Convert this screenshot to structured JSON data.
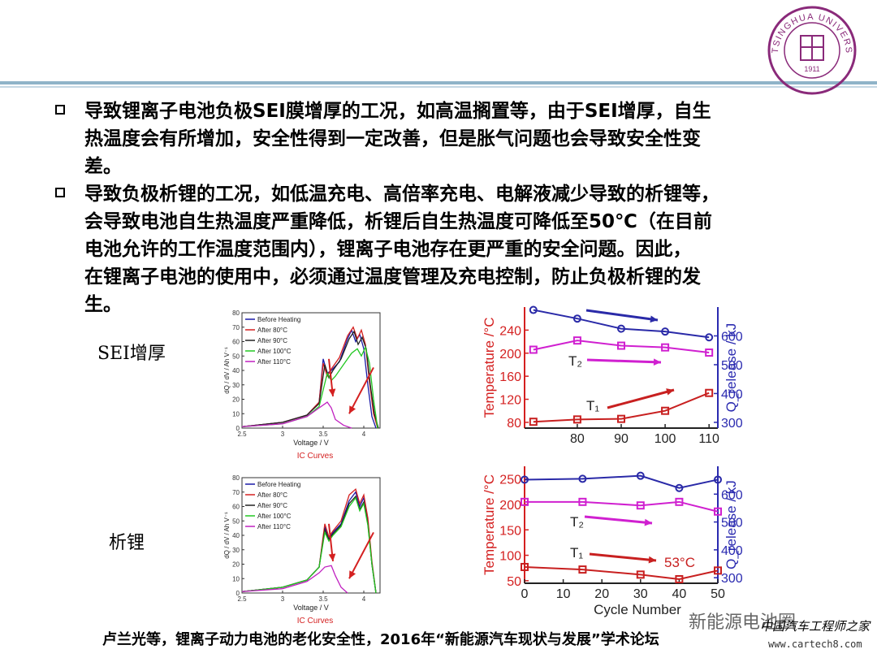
{
  "slide": {
    "bullets": [
      "导致锂离子电池负极SEI膜增厚的工况，如高温搁置等，由于SEI增厚，自生热温度会有所增加，安全性得到一定改善，但是胀气问题也会导致安全性变差。",
      "导致负极析锂的工况，如低温充电、高倍率充电、电解液减少导致的析锂等，会导致电池自生热温度严重降低，析锂后自生热温度可降低至50℃（在目前电池允许的工作温度范围内），锂离子电池存在更严重的安全问题。因此，在锂离子电池的使用中，必须通过温度管理及充电控制，防止负极析锂的发生。"
    ],
    "bullet_lines": [
      [
        "导致锂离子电池负极SEI膜增厚的工况，如高温搁置等，由于SEI增厚，自生",
        "热温度会有所增加，安全性得到一定改善，但是胀气问题也会导致安全性变",
        "差。"
      ],
      [
        "导致负极析锂的工况，如低温充电、高倍率充电、电解液减少导致的析锂等，",
        "会导致电池自生热温度严重降低，析锂后自生热温度可降低至50℃（在目前",
        "电池允许的工作温度范围内），锂离子电池存在更严重的安全问题。因此，",
        "在锂离子电池的使用中，必须通过温度管理及充电控制，防止负极析锂的发",
        "生。"
      ]
    ],
    "labels": {
      "sei": "SEI增厚",
      "plating": "析锂"
    },
    "footer": "卢兰光等，锂离子动力电池的老化安全性，2016年“新能源汽车现状与发展”学术论坛",
    "watermark": {
      "wechat": "新能源电池圈",
      "site_cn": "中国汽车工程师之家",
      "site_url": "www.cartech8.com"
    },
    "seal": {
      "top_text": "TSINGHUA UNIVERSITY",
      "year": "1911"
    }
  },
  "colors": {
    "before": "#1a1aa8",
    "after80": "#d42020",
    "after90": "#222222",
    "after100": "#22c822",
    "after110": "#c020c0",
    "t_axis": "#d42020",
    "q_axis": "#2a2ab0",
    "q_series": "#2a2aa8",
    "t2_series": "#d020d0",
    "t1_series": "#c82020",
    "arrow": "#d42020"
  },
  "chart_data": [
    {
      "type": "line",
      "xlabel": "Voltage / V",
      "ylabel": "dQ / dV / Ah V⁻¹",
      "caption": "IC Curves",
      "xlim": [
        2.5,
        4.2
      ],
      "ylim": [
        0,
        80
      ],
      "x_ticks": [
        "2.5",
        "3",
        "3.5",
        "4"
      ],
      "y_ticks": [
        "0",
        "10",
        "20",
        "30",
        "40",
        "50",
        "60",
        "70",
        "80"
      ],
      "legend": [
        "Before Heating",
        "After 80°C",
        "After 90°C",
        "After 100°C",
        "After 110°C"
      ],
      "series": [
        {
          "name": "Before Heating",
          "x": [
            2.5,
            3.0,
            3.3,
            3.45,
            3.5,
            3.55,
            3.6,
            3.7,
            3.8,
            3.85,
            3.9,
            3.95,
            4.0,
            4.05,
            4.1,
            4.15
          ],
          "y": [
            1,
            4,
            9,
            18,
            48,
            38,
            40,
            46,
            62,
            68,
            60,
            65,
            55,
            30,
            8,
            0
          ]
        },
        {
          "name": "After 80°C",
          "x": [
            2.5,
            3.0,
            3.3,
            3.45,
            3.5,
            3.55,
            3.6,
            3.7,
            3.8,
            3.87,
            3.92,
            3.97,
            4.02,
            4.07,
            4.12,
            4.17
          ],
          "y": [
            1,
            4,
            9,
            18,
            45,
            36,
            41,
            49,
            64,
            70,
            62,
            68,
            58,
            32,
            10,
            0
          ]
        },
        {
          "name": "After 90°C",
          "x": [
            2.5,
            3.0,
            3.3,
            3.45,
            3.52,
            3.57,
            3.62,
            3.72,
            3.82,
            3.88,
            3.93,
            3.98,
            4.03,
            4.08,
            4.13,
            4.18
          ],
          "y": [
            1,
            4,
            9,
            17,
            44,
            35,
            40,
            48,
            62,
            67,
            58,
            63,
            55,
            30,
            10,
            0
          ]
        },
        {
          "name": "After 100°C",
          "x": [
            2.5,
            3.0,
            3.3,
            3.45,
            3.55,
            3.6,
            3.65,
            3.75,
            3.85,
            3.92,
            3.97,
            4.02,
            4.07,
            4.12,
            4.17
          ],
          "y": [
            1,
            3,
            8,
            15,
            38,
            33,
            36,
            44,
            52,
            55,
            50,
            56,
            45,
            20,
            0
          ]
        },
        {
          "name": "After 110°C",
          "x": [
            2.5,
            3.0,
            3.3,
            3.45,
            3.55,
            3.6,
            3.65,
            3.75,
            3.85
          ],
          "y": [
            1,
            3,
            8,
            14,
            18,
            14,
            6,
            2,
            0
          ]
        }
      ]
    },
    {
      "type": "line",
      "x": [
        70,
        80,
        90,
        100,
        110
      ],
      "x_ticks": [
        "80",
        "90",
        "100",
        "110"
      ],
      "xlim": [
        68,
        112
      ],
      "ylabel_left": "Temperature /°C",
      "ylim_left": [
        70,
        280
      ],
      "y_ticks_left": [
        "80",
        "120",
        "160",
        "200",
        "240"
      ],
      "ylabel_right": "Q_release / kJ",
      "ylim_right": [
        280,
        700
      ],
      "y_ticks_right": [
        "300",
        "400",
        "500",
        "600"
      ],
      "series": [
        {
          "name": "Q_release",
          "axis": "right",
          "values": [
            690,
            660,
            625,
            615,
            595
          ]
        },
        {
          "name": "T₂",
          "axis": "left",
          "values": [
            206,
            222,
            213,
            210,
            201
          ]
        },
        {
          "name": "T₁",
          "axis": "left",
          "values": [
            81,
            85,
            86,
            100,
            131
          ]
        }
      ],
      "annotations": [
        "T₂",
        "T₁"
      ]
    },
    {
      "type": "line",
      "xlabel": "Voltage / V",
      "ylabel": "dQ / dV / Ah V⁻¹",
      "caption": "IC Curves",
      "xlim": [
        2.5,
        4.2
      ],
      "ylim": [
        0,
        80
      ],
      "x_ticks": [
        "2.5",
        "3",
        "3.5",
        "4"
      ],
      "y_ticks": [
        "0",
        "10",
        "20",
        "30",
        "40",
        "50",
        "60",
        "70",
        "80"
      ],
      "legend": [
        "Before Heating",
        "After 80°C",
        "After 90°C",
        "After 100°C",
        "After 110°C"
      ],
      "series": [
        {
          "name": "Before Heating",
          "x": [
            2.5,
            3.0,
            3.3,
            3.45,
            3.52,
            3.57,
            3.62,
            3.72,
            3.82,
            3.9,
            3.95,
            4.0,
            4.05,
            4.1,
            4.15
          ],
          "y": [
            1,
            4,
            9,
            18,
            46,
            38,
            42,
            48,
            64,
            70,
            60,
            66,
            50,
            20,
            0
          ]
        },
        {
          "name": "After 80°C",
          "x": [
            2.5,
            3.0,
            3.3,
            3.45,
            3.52,
            3.57,
            3.62,
            3.72,
            3.82,
            3.9,
            3.95,
            4.0,
            4.05,
            4.1,
            4.15
          ],
          "y": [
            1,
            4,
            9,
            18,
            48,
            39,
            43,
            50,
            68,
            72,
            62,
            68,
            52,
            22,
            0
          ]
        },
        {
          "name": "After 90°C",
          "x": [
            2.5,
            3.0,
            3.3,
            3.45,
            3.52,
            3.57,
            3.62,
            3.72,
            3.82,
            3.9,
            3.95,
            4.0,
            4.05,
            4.1,
            4.15
          ],
          "y": [
            1,
            4,
            9,
            18,
            44,
            37,
            41,
            47,
            62,
            67,
            58,
            63,
            48,
            20,
            0
          ]
        },
        {
          "name": "After 100°C",
          "x": [
            2.5,
            3.0,
            3.3,
            3.45,
            3.52,
            3.57,
            3.62,
            3.72,
            3.82,
            3.9,
            3.95,
            4.0,
            4.05,
            4.1,
            4.15
          ],
          "y": [
            1,
            4,
            9,
            18,
            42,
            36,
            40,
            46,
            60,
            66,
            57,
            62,
            47,
            20,
            0
          ]
        },
        {
          "name": "After 110°C",
          "x": [
            2.5,
            3.0,
            3.3,
            3.45,
            3.52,
            3.6,
            3.65,
            3.72,
            3.8
          ],
          "y": [
            1,
            3,
            8,
            14,
            18,
            19,
            12,
            4,
            0
          ]
        }
      ]
    },
    {
      "type": "line",
      "xlabel": "Cycle Number",
      "x": [
        0,
        15,
        30,
        40,
        50
      ],
      "x_ticks": [
        "0",
        "10",
        "20",
        "30",
        "40",
        "50"
      ],
      "xlim": [
        0,
        50
      ],
      "ylabel_left": "Temperature /°C",
      "ylim_left": [
        45,
        275
      ],
      "y_ticks_left": [
        "50",
        "100",
        "150",
        "200",
        "250"
      ],
      "ylabel_right": "Q_release / kJ",
      "ylim_right": [
        280,
        700
      ],
      "y_ticks_right": [
        "300",
        "400",
        "500",
        "600"
      ],
      "series": [
        {
          "name": "Q_release",
          "axis": "right",
          "values": [
            652,
            655,
            666,
            622,
            652
          ]
        },
        {
          "name": "T₂",
          "axis": "left",
          "values": [
            205,
            205,
            198,
            205,
            186
          ]
        },
        {
          "name": "T₁",
          "axis": "left",
          "values": [
            77,
            72,
            62,
            53,
            70
          ]
        }
      ],
      "annotations": [
        "T₂",
        "T₁",
        "53°C"
      ]
    }
  ]
}
